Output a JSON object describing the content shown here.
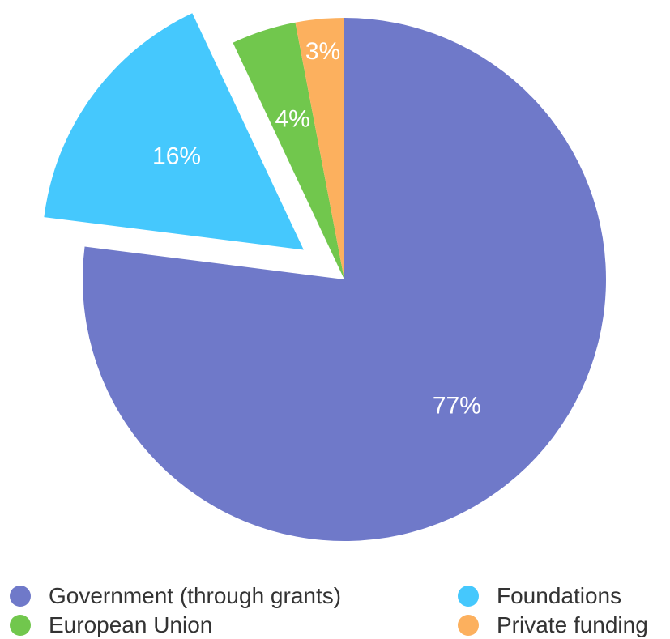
{
  "chart_data": {
    "type": "pie",
    "title": "",
    "categories": [
      "Government (through grants)",
      "Foundations",
      "European Union",
      "Private funding"
    ],
    "values": [
      77,
      16,
      4,
      3
    ],
    "labels": [
      "77%",
      "16%",
      "4%",
      "3%"
    ],
    "colors": [
      "#6f79c9",
      "#45c8fd",
      "#71c74d",
      "#fcb05e"
    ],
    "exploded": [
      "Foundations"
    ],
    "legend_position": "bottom"
  }
}
